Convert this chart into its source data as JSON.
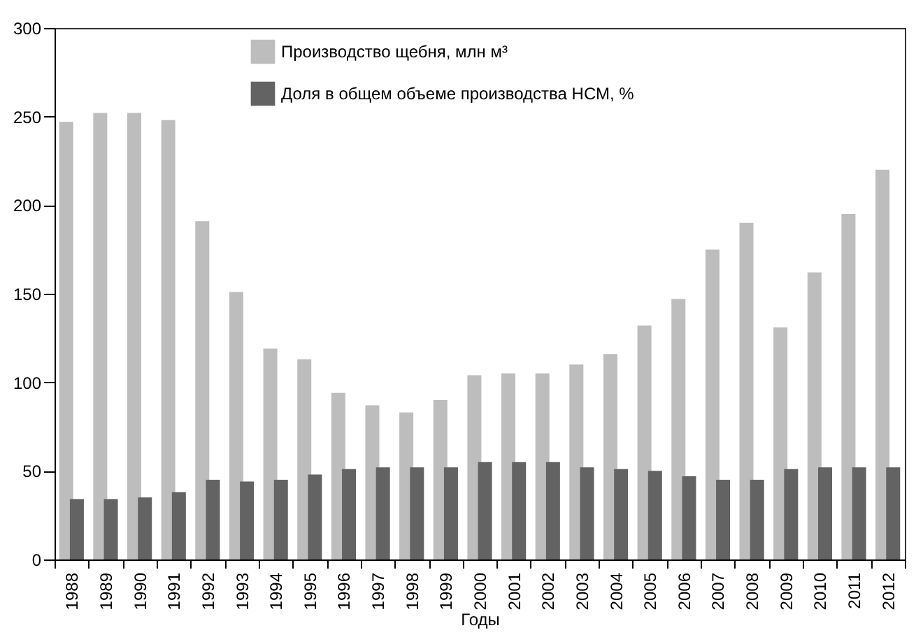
{
  "chart_data": {
    "type": "bar",
    "xlabel": "Годы",
    "categories": [
      "1988",
      "1989",
      "1990",
      "1991",
      "1992",
      "1993",
      "1994",
      "1995",
      "1996",
      "1997",
      "1998",
      "1999",
      "2000",
      "2001",
      "2002",
      "2003",
      "2004",
      "2005",
      "2006",
      "2007",
      "2008",
      "2009",
      "2010",
      "2011",
      "2012"
    ],
    "series": [
      {
        "name": "Производство щебня, млн м³",
        "color": "#bdbdbd",
        "values": [
          247,
          252,
          252,
          248,
          191,
          151,
          119,
          113,
          94,
          87,
          83,
          90,
          104,
          105,
          105,
          110,
          116,
          132,
          147,
          175,
          190,
          131,
          162,
          195,
          220
        ]
      },
      {
        "name": "Доля в общем объеме производства НСМ, %",
        "color": "#636363",
        "values": [
          34,
          34,
          35,
          38,
          45,
          44,
          45,
          48,
          51,
          52,
          52,
          52,
          55,
          55,
          55,
          52,
          51,
          50,
          47,
          45,
          45,
          51,
          52,
          52,
          52
        ]
      }
    ],
    "ylim": [
      0,
      300
    ],
    "yticks": [
      0,
      50,
      100,
      150,
      200,
      250,
      300
    ],
    "legend": "top",
    "grid": false
  }
}
